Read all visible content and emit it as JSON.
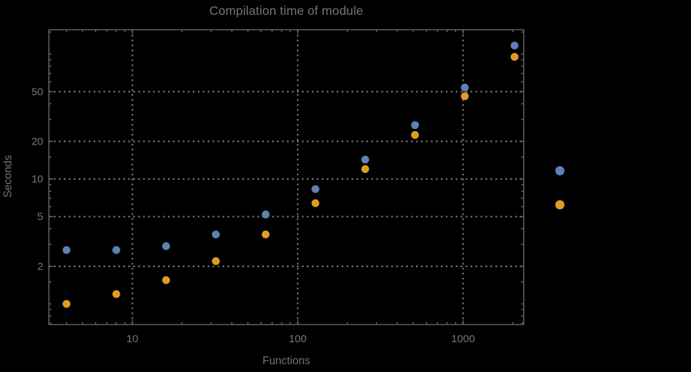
{
  "chart_data": {
    "type": "scatter",
    "title": "Compilation time of module",
    "xlabel": "Functions",
    "ylabel": "Seconds",
    "x_scale": "log",
    "y_scale": "log",
    "grid": true,
    "x": [
      4,
      8,
      16,
      32,
      64,
      128,
      256,
      512,
      1024,
      2048
    ],
    "series": [
      {
        "name": "blue",
        "color": "#5e81b5",
        "values": [
          2.7,
          2.7,
          2.9,
          3.6,
          5.2,
          8.3,
          14.3,
          27,
          54,
          117
        ]
      },
      {
        "name": "orange",
        "color": "#e19c24",
        "values": [
          1.0,
          1.2,
          1.55,
          2.2,
          3.6,
          6.4,
          12,
          22.5,
          46,
          95
        ]
      }
    ],
    "xlim": [
      3.13,
      2327
    ],
    "ylim": [
      0.684,
      156.5
    ],
    "x_major_ticks": [
      {
        "value": 10,
        "label": "10"
      },
      {
        "value": 100,
        "label": "100"
      },
      {
        "value": 1000,
        "label": "1000"
      }
    ],
    "y_major_ticks": [
      {
        "value": 2,
        "label": "2"
      },
      {
        "value": 5,
        "label": "5"
      },
      {
        "value": 10,
        "label": "10"
      },
      {
        "value": 20,
        "label": "20"
      },
      {
        "value": 50,
        "label": "50"
      }
    ],
    "x_minor_ticks": [
      4,
      5,
      6,
      7,
      8,
      9,
      20,
      30,
      40,
      50,
      60,
      70,
      80,
      90,
      200,
      300,
      400,
      500,
      600,
      700,
      800,
      900,
      2000
    ],
    "y_minor_ticks": [
      0.7,
      0.8,
      0.9,
      1,
      1.5,
      3,
      4,
      6,
      7,
      8,
      9,
      15,
      30,
      40,
      60,
      70,
      80,
      90,
      100,
      150
    ],
    "grid_x_values": [
      10,
      100,
      1000
    ],
    "grid_y_values": [
      2,
      5,
      10,
      20,
      50
    ],
    "legend": {
      "position": "right-outside",
      "markers": [
        {
          "color": "#5e81b5",
          "label": ""
        },
        {
          "color": "#e19c24",
          "label": ""
        }
      ]
    }
  },
  "colors": {
    "background": "#000000",
    "frame": "#696969",
    "grid": "#757575",
    "text": "#757575",
    "series_blue": "#5e81b5",
    "series_orange": "#e19c24"
  }
}
